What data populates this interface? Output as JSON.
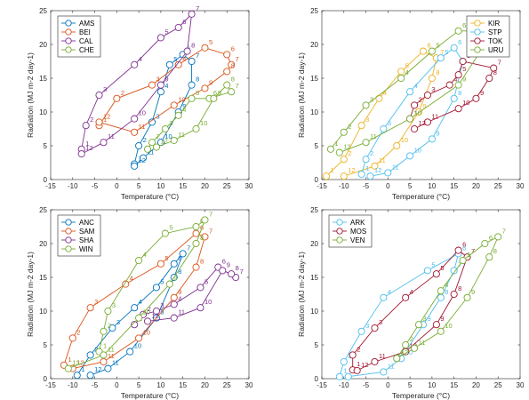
{
  "months": [
    "1",
    "2",
    "3",
    "4",
    "5",
    "6",
    "7",
    "8",
    "9",
    "10",
    "11",
    "12"
  ],
  "colors": {
    "blue": "#0072BD",
    "orange": "#D95319",
    "purple": "#7E2F8E",
    "green": "#77AC30",
    "lightblue": "#4DBEEE",
    "gold": "#EDB120",
    "red": "#A2142F"
  },
  "chart_data": [
    {
      "type": "line",
      "xlabel": "Temperature (°C)",
      "ylabel": "Radiation (MJ m-2 day-1)",
      "xlim": [
        -15,
        30
      ],
      "ylim": [
        0,
        25
      ],
      "xticks": [
        "-15",
        "-10",
        "-5",
        "0",
        "5",
        "10",
        "15",
        "20",
        "25",
        "30"
      ],
      "yticks": [
        "0",
        "5",
        "10",
        "15",
        "20",
        "25"
      ],
      "legend": "top-left",
      "series": [
        {
          "name": "AMS",
          "color": "blue",
          "x": [
            4,
            5,
            8,
            10,
            12,
            15,
            17,
            17,
            14,
            10,
            6,
            4
          ],
          "y": [
            2.3,
            5,
            8.5,
            13,
            17,
            18.5,
            17.5,
            14,
            10,
            5.5,
            3.2,
            2
          ]
        },
        {
          "name": "BEI",
          "color": "orange",
          "x": [
            -4,
            0,
            8,
            14,
            20,
            25,
            26,
            25,
            20,
            13,
            4,
            -4
          ],
          "y": [
            8,
            12,
            14,
            17,
            19.5,
            18.5,
            17,
            16,
            13.5,
            11,
            7,
            8.5
          ]
        },
        {
          "name": "CAL",
          "color": "purple",
          "x": [
            -8,
            -7,
            -4,
            4,
            10,
            14,
            17,
            16,
            10,
            4,
            -3,
            -8
          ],
          "y": [
            4.5,
            8,
            12.5,
            17,
            21,
            22.5,
            24.5,
            19,
            14,
            9,
            5.5,
            3.8
          ]
        },
        {
          "name": "CHE",
          "color": "green",
          "x": [
            7,
            8,
            11,
            14,
            17,
            21,
            26,
            25,
            22,
            18,
            13,
            9
          ],
          "y": [
            4.5,
            5.5,
            7.5,
            9.5,
            12,
            12,
            13,
            14,
            12,
            7.5,
            5.8,
            4.8
          ]
        }
      ]
    },
    {
      "type": "line",
      "xlabel": "Temperature (°C)",
      "ylabel": "Radiation (MJ m-2 day-1)",
      "xlim": [
        -15,
        30
      ],
      "ylim": [
        0,
        25
      ],
      "xticks": [
        "-15",
        "-10",
        "-5",
        "0",
        "5",
        "10",
        "15",
        "20",
        "25",
        "30"
      ],
      "yticks": [
        "0",
        "5",
        "10",
        "15",
        "20",
        "25"
      ],
      "legend": "top-right",
      "series": [
        {
          "name": "KIR",
          "color": "gold",
          "x": [
            -14,
            -10,
            -6,
            -2,
            3,
            8,
            11,
            10,
            7,
            2,
            -3,
            -10
          ],
          "y": [
            0.5,
            3,
            8,
            12,
            16,
            19,
            18,
            15,
            10,
            5,
            2,
            0.5
          ]
        },
        {
          "name": "STP",
          "color": "lightblue",
          "x": [
            -6,
            -5,
            -1,
            5,
            12,
            15,
            17,
            15,
            10,
            5,
            0,
            -4
          ],
          "y": [
            0.8,
            3,
            7.5,
            13,
            18,
            19.5,
            17.5,
            12,
            6,
            3.5,
            1,
            0.5
          ]
        },
        {
          "name": "TOK",
          "color": "red",
          "x": [
            5,
            6,
            9,
            14,
            16,
            17,
            24,
            23,
            20,
            16,
            9,
            6
          ],
          "y": [
            9,
            11,
            12.5,
            14,
            15.5,
            17.5,
            16.5,
            15,
            12,
            10.5,
            8.5,
            7.5
          ]
        },
        {
          "name": "URU",
          "color": "green",
          "x": [
            -13,
            -10,
            -5,
            3,
            10,
            16,
            21,
            22,
            16,
            5,
            -5,
            -11
          ],
          "y": [
            4.5,
            7,
            11,
            15,
            19,
            22,
            22,
            20,
            14,
            9,
            5.5,
            4
          ]
        }
      ]
    },
    {
      "type": "line",
      "xlabel": "Temperature (°C)",
      "ylabel": "Radiation (MJ m-2 day-1)",
      "xlim": [
        -15,
        30
      ],
      "ylim": [
        0,
        25
      ],
      "xticks": [
        "-15",
        "-10",
        "-5",
        "0",
        "5",
        "10",
        "15",
        "20",
        "25",
        "30"
      ],
      "yticks": [
        "0",
        "5",
        "10",
        "15",
        "20",
        "25"
      ],
      "legend": "top-left",
      "series": [
        {
          "name": "ANC",
          "color": "blue",
          "x": [
            -9,
            -6,
            -1,
            4,
            9,
            13,
            15,
            13,
            9,
            3,
            -2,
            -6
          ],
          "y": [
            0.5,
            3.5,
            7.5,
            10.5,
            13.5,
            17,
            18.5,
            15,
            9,
            4,
            1.5,
            0.5
          ]
        },
        {
          "name": "SAM",
          "color": "orange",
          "x": [
            -12,
            -10,
            -6,
            2,
            10,
            18,
            20,
            18,
            13,
            5,
            -3,
            -10
          ],
          "y": [
            2,
            6,
            10.5,
            14,
            17,
            21.5,
            21,
            16.5,
            12,
            6,
            2.5,
            1.5
          ]
        },
        {
          "name": "SHA",
          "color": "purple",
          "x": [
            4,
            6,
            9,
            13,
            19,
            23,
            27,
            26,
            24,
            19,
            13,
            7
          ],
          "y": [
            8,
            9.5,
            10,
            11,
            13.5,
            16.5,
            15,
            15.5,
            16,
            10.5,
            9,
            8.5
          ]
        },
        {
          "name": "WIN",
          "color": "green",
          "x": [
            -4,
            -3,
            -2,
            5,
            11,
            18,
            20,
            18,
            12,
            5,
            -3,
            -11
          ],
          "y": [
            4,
            7,
            10,
            17.5,
            21.5,
            22.5,
            23.5,
            20,
            14,
            9,
            3.5,
            1.5
          ]
        }
      ]
    },
    {
      "type": "line",
      "xlabel": "Temperature (°C)",
      "ylabel": "Radiation (MJ m-2 day-1)",
      "xlim": [
        -15,
        30
      ],
      "ylim": [
        0,
        25
      ],
      "xticks": [
        "-15",
        "-10",
        "-5",
        "0",
        "5",
        "10",
        "15",
        "20",
        "25",
        "30"
      ],
      "yticks": [
        "0",
        "5",
        "10",
        "15",
        "20",
        "25"
      ],
      "legend": "top-left",
      "series": [
        {
          "name": "ARK",
          "color": "lightblue",
          "x": [
            -11,
            -10,
            -6,
            -1,
            9,
            16,
            15,
            12,
            8,
            3,
            -1,
            -9
          ],
          "y": [
            0.3,
            2.5,
            7,
            12,
            16,
            18.5,
            16,
            12,
            8,
            3,
            1,
            0.3
          ]
        },
        {
          "name": "MOS",
          "color": "red",
          "x": [
            -8,
            -8,
            -3,
            4,
            11,
            16,
            18,
            15,
            11,
            4,
            -3,
            -7
          ],
          "y": [
            1.3,
            3.5,
            7.5,
            12,
            15.5,
            19,
            18,
            12.5,
            8,
            4,
            2.5,
            1.2
          ]
        },
        {
          "name": "VEN",
          "color": "green",
          "x": [
            2,
            4,
            7,
            12,
            17,
            22,
            25,
            23,
            18,
            12,
            6,
            2
          ],
          "y": [
            3,
            5,
            8,
            13,
            17.5,
            20,
            21,
            18,
            12,
            7,
            4.5,
            3
          ]
        }
      ]
    }
  ]
}
